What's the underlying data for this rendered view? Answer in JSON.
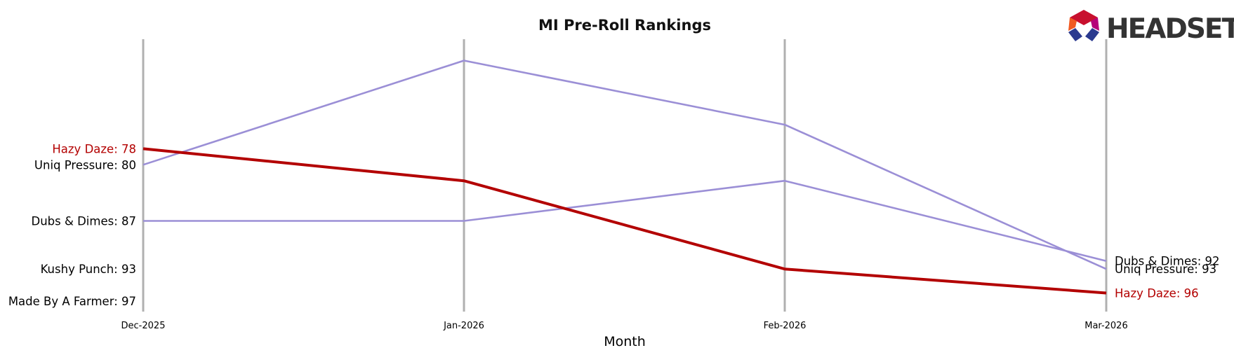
{
  "colors": {
    "highlight": "#b30000",
    "other": "#9b8fd6",
    "axis_line": "#b0b0b0",
    "label_default": "#000000",
    "logo_text": "#333333"
  },
  "logo": {
    "text": "HEADSET",
    "icon": "headset-hexagon-icon"
  },
  "chart_data": {
    "type": "line",
    "title": "MI Pre-Roll Rankings",
    "xlabel": "Month",
    "ylabel": "",
    "categories": [
      "Dec-2025",
      "Jan-2026",
      "Feb-2026",
      "Mar-2026"
    ],
    "y_inverted": true,
    "ylim": [
      66,
      97
    ],
    "grid": false,
    "series": [
      {
        "name": "Hazy Daze",
        "values": [
          78,
          82,
          93,
          96
        ],
        "highlight": true
      },
      {
        "name": "Uniq Pressure",
        "values": [
          80,
          67,
          75,
          93
        ],
        "highlight": false
      },
      {
        "name": "Dubs & Dimes",
        "values": [
          87,
          87,
          82,
          92
        ],
        "highlight": false
      },
      {
        "name": "Kushy Punch",
        "values": [
          93,
          null,
          null,
          null
        ],
        "highlight": false
      },
      {
        "name": "Made By A Farmer",
        "values": [
          97,
          null,
          null,
          null
        ],
        "highlight": false
      }
    ],
    "start_labels": [
      {
        "text": "Hazy Daze: 78",
        "value": 78,
        "highlight": true
      },
      {
        "text": "Uniq Pressure: 80",
        "value": 80,
        "highlight": false
      },
      {
        "text": "Dubs & Dimes: 87",
        "value": 87,
        "highlight": false
      },
      {
        "text": "Kushy Punch: 93",
        "value": 93,
        "highlight": false
      },
      {
        "text": "Made By A Farmer: 97",
        "value": 97,
        "highlight": false
      }
    ],
    "end_labels": [
      {
        "text": "Dubs & Dimes: 92",
        "value": 92,
        "highlight": false
      },
      {
        "text": "Uniq Pressure: 93",
        "value": 93,
        "highlight": false
      },
      {
        "text": "Hazy Daze: 96",
        "value": 96,
        "highlight": true
      }
    ]
  }
}
